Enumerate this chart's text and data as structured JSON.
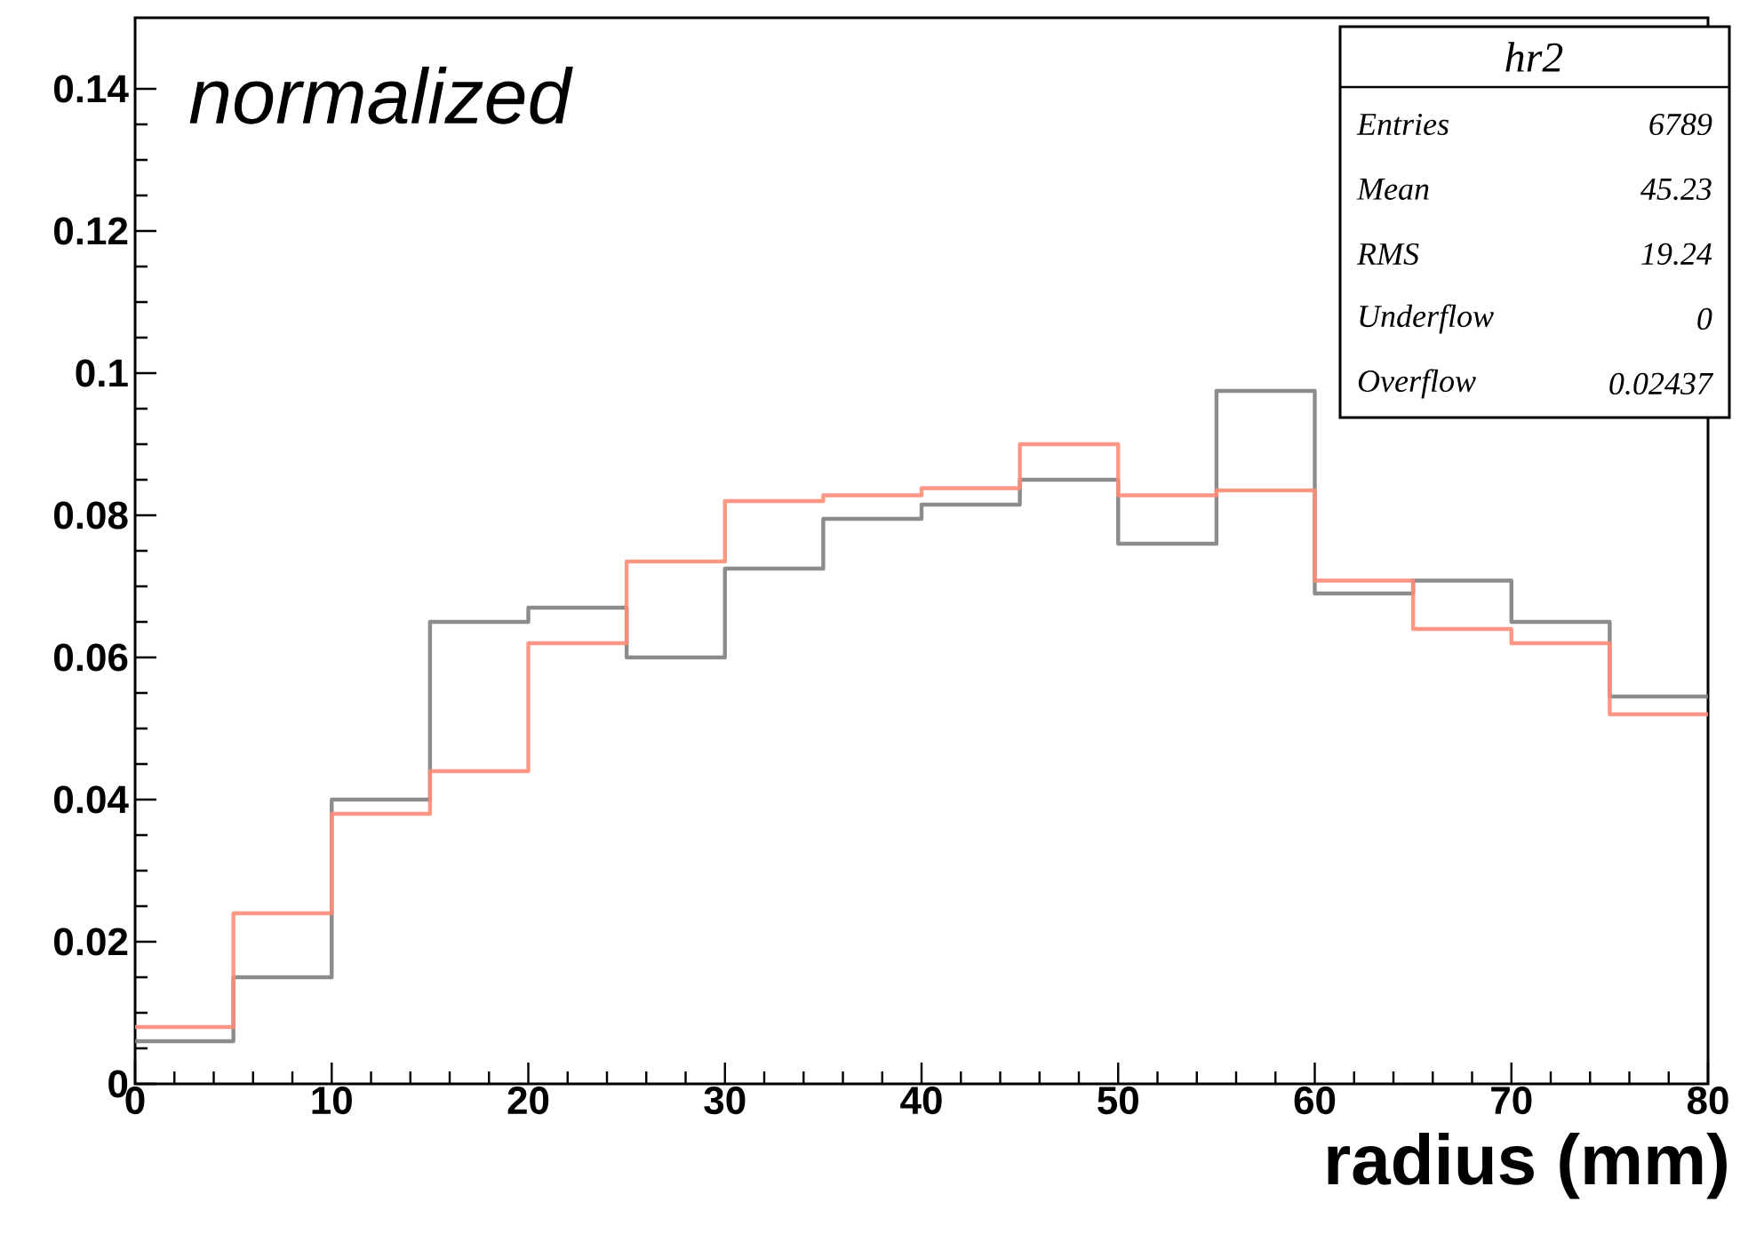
{
  "chart_data": {
    "type": "histogram",
    "xlabel": "radius (mm)",
    "bins": [
      0,
      5,
      10,
      15,
      20,
      25,
      30,
      35,
      40,
      45,
      50,
      55,
      60,
      65,
      70,
      75,
      80
    ],
    "series": [
      {
        "color": "#808080",
        "values": [
          0.006,
          0.015,
          0.04,
          0.065,
          0.067,
          0.06,
          0.0725,
          0.0795,
          0.0815,
          0.085,
          0.076,
          0.0975,
          0.069,
          0.0708,
          0.065,
          0.0545
        ]
      },
      {
        "color": "#ff8c78",
        "values": [
          0.008,
          0.024,
          0.038,
          0.044,
          0.062,
          0.0735,
          0.082,
          0.0828,
          0.0838,
          0.09,
          0.0828,
          0.0835,
          0.0708,
          0.064,
          0.062,
          0.052
        ]
      }
    ],
    "xlim": [
      0,
      80
    ],
    "ylim": [
      0,
      0.15
    ],
    "xticks": [
      0,
      10,
      20,
      30,
      40,
      50,
      60,
      70,
      80
    ],
    "yticks": [
      0,
      0.02,
      0.04,
      0.06,
      0.08,
      0.1,
      0.12,
      0.14
    ],
    "grid": false,
    "annotations": [
      "normalized",
      "hr2",
      "Entries",
      "6789",
      "Mean",
      "45.23",
      "RMS",
      "19.24",
      "Underflow",
      "0",
      "Overflow",
      "0.02437"
    ]
  }
}
